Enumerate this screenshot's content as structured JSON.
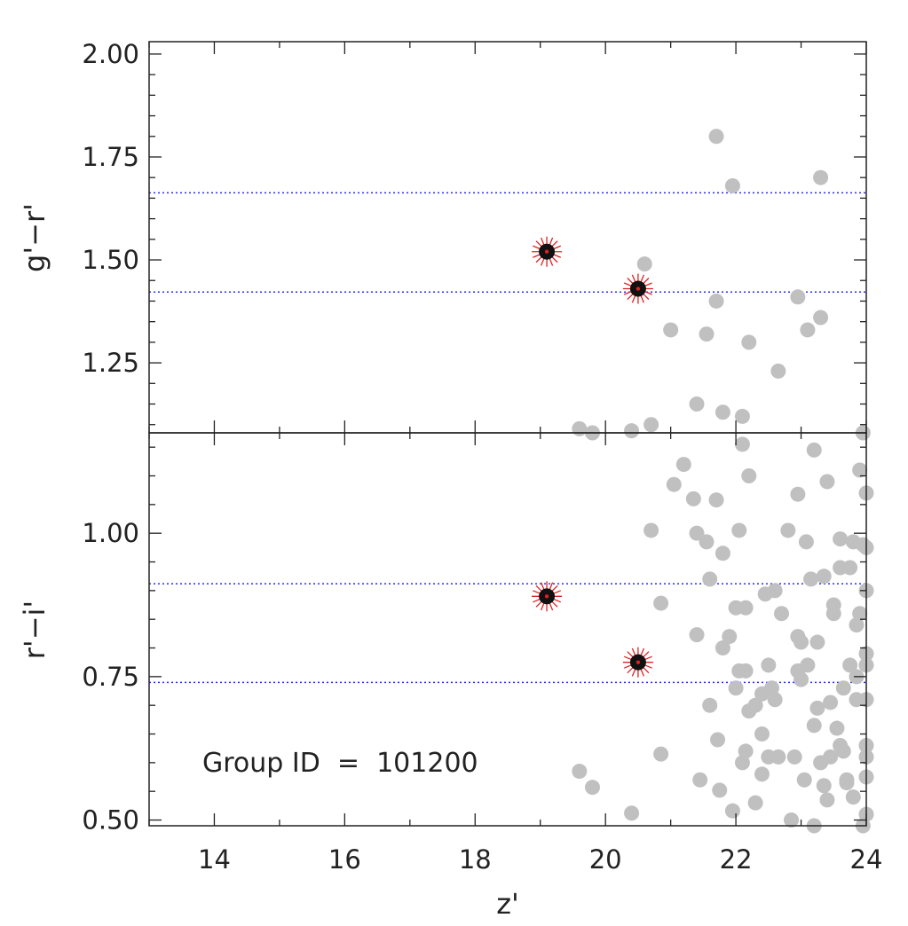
{
  "chart_data": [
    {
      "type": "scatter",
      "panel": "top",
      "title": "",
      "xlabel": "z'",
      "ylabel": "g'−r'",
      "xlim": [
        13,
        24
      ],
      "ylim": [
        1.08,
        2.03
      ],
      "xticks": [
        14,
        16,
        18,
        20,
        22,
        24
      ],
      "yticks": [
        2.0,
        1.75,
        1.5,
        1.25
      ],
      "ytick_labels": [
        "2.00",
        "1.75",
        "1.50",
        "1.25"
      ],
      "grid": false,
      "reference_lines": [
        1.663,
        1.422
      ],
      "colors": {
        "field": "#c0c0c0",
        "members": "#111111",
        "member_marker": "#e02020",
        "reference_line": "#2a2aff",
        "axes": "#222222"
      },
      "series": [
        {
          "points": [
            [
              19.6,
              1.09
            ],
            [
              19.8,
              1.08
            ],
            [
              20.4,
              1.085
            ],
            [
              20.6,
              1.49
            ],
            [
              20.7,
              1.1
            ],
            [
              21.0,
              1.33
            ],
            [
              21.4,
              1.15
            ],
            [
              21.55,
              1.32
            ],
            [
              21.7,
              1.4
            ],
            [
              21.7,
              1.8
            ],
            [
              21.8,
              1.13
            ],
            [
              21.95,
              1.68
            ],
            [
              22.1,
              1.12
            ],
            [
              22.2,
              1.3
            ],
            [
              22.65,
              1.23
            ],
            [
              22.95,
              1.41
            ],
            [
              23.1,
              1.33
            ],
            [
              23.3,
              1.36
            ],
            [
              23.3,
              1.7
            ],
            [
              23.95,
              1.08
            ]
          ]
        },
        {
          "points": [
            [
              19.1,
              1.52
            ],
            [
              20.5,
              1.43
            ]
          ]
        }
      ]
    },
    {
      "type": "scatter",
      "panel": "bottom",
      "title": "",
      "xlabel": "z'",
      "ylabel": "r'−i'",
      "xlim": [
        13,
        24
      ],
      "ylim": [
        0.49,
        1.175
      ],
      "xticks": [
        14,
        16,
        18,
        20,
        22,
        24
      ],
      "xtick_labels": [
        "14",
        "16",
        "18",
        "20",
        "22",
        "24"
      ],
      "yticks": [
        1.0,
        0.75,
        0.5
      ],
      "ytick_labels": [
        "1.00",
        "0.75",
        "0.50"
      ],
      "grid": false,
      "reference_lines": [
        0.912,
        0.74
      ],
      "annotation": "Group ID  =  101200",
      "series": [
        {
          "points": [
            [
              19.6,
              0.585
            ],
            [
              19.8,
              0.557
            ],
            [
              20.4,
              0.512
            ],
            [
              20.7,
              1.005
            ],
            [
              20.85,
              0.878
            ],
            [
              20.85,
              0.615
            ],
            [
              21.05,
              1.085
            ],
            [
              21.2,
              1.12
            ],
            [
              21.35,
              1.06
            ],
            [
              21.4,
              1.0
            ],
            [
              21.4,
              0.823
            ],
            [
              21.45,
              0.57
            ],
            [
              21.55,
              0.985
            ],
            [
              21.6,
              0.92
            ],
            [
              21.6,
              0.7
            ],
            [
              21.7,
              1.058
            ],
            [
              21.72,
              0.64
            ],
            [
              21.75,
              0.552
            ],
            [
              21.8,
              0.965
            ],
            [
              21.8,
              0.8
            ],
            [
              21.9,
              0.82
            ],
            [
              21.95,
              0.516
            ],
            [
              22.0,
              0.87
            ],
            [
              22.0,
              0.73
            ],
            [
              22.05,
              0.76
            ],
            [
              22.05,
              1.005
            ],
            [
              22.1,
              1.155
            ],
            [
              22.1,
              0.6
            ],
            [
              22.15,
              0.87
            ],
            [
              22.15,
              0.76
            ],
            [
              22.15,
              0.62
            ],
            [
              22.2,
              1.1
            ],
            [
              22.2,
              0.69
            ],
            [
              22.3,
              0.7
            ],
            [
              22.3,
              0.53
            ],
            [
              22.4,
              0.72
            ],
            [
              22.4,
              0.65
            ],
            [
              22.4,
              0.58
            ],
            [
              22.45,
              0.894
            ],
            [
              22.5,
              0.77
            ],
            [
              22.5,
              0.61
            ],
            [
              22.55,
              0.73
            ],
            [
              22.6,
              0.9
            ],
            [
              22.6,
              0.71
            ],
            [
              22.65,
              0.61
            ],
            [
              22.7,
              0.86
            ],
            [
              22.8,
              1.005
            ],
            [
              22.85,
              0.5
            ],
            [
              22.9,
              0.61
            ],
            [
              22.95,
              1.068
            ],
            [
              22.95,
              0.82
            ],
            [
              22.95,
              0.76
            ],
            [
              23.0,
              0.81
            ],
            [
              23.0,
              0.745
            ],
            [
              23.05,
              0.57
            ],
            [
              23.08,
              0.985
            ],
            [
              23.1,
              0.77
            ],
            [
              23.15,
              0.92
            ],
            [
              23.2,
              0.665
            ],
            [
              23.2,
              0.49
            ],
            [
              23.2,
              1.145
            ],
            [
              23.25,
              0.81
            ],
            [
              23.25,
              0.695
            ],
            [
              23.3,
              0.6
            ],
            [
              23.35,
              0.925
            ],
            [
              23.35,
              0.56
            ],
            [
              23.4,
              1.09
            ],
            [
              23.4,
              0.535
            ],
            [
              23.45,
              0.705
            ],
            [
              23.45,
              0.61
            ],
            [
              23.5,
              0.86
            ],
            [
              23.5,
              0.875
            ],
            [
              23.55,
              0.66
            ],
            [
              23.6,
              0.99
            ],
            [
              23.6,
              0.63
            ],
            [
              23.6,
              0.94
            ],
            [
              23.65,
              0.73
            ],
            [
              23.65,
              0.62
            ],
            [
              23.7,
              0.57
            ],
            [
              23.7,
              0.565
            ],
            [
              23.75,
              0.94
            ],
            [
              23.75,
              0.77
            ],
            [
              23.8,
              0.985
            ],
            [
              23.8,
              0.54
            ],
            [
              23.85,
              0.75
            ],
            [
              23.85,
              0.71
            ],
            [
              23.85,
              0.84
            ],
            [
              23.9,
              0.86
            ],
            [
              23.9,
              1.11
            ],
            [
              23.95,
              0.98
            ],
            [
              23.95,
              0.49
            ],
            [
              24.0,
              0.9
            ],
            [
              24.0,
              0.79
            ],
            [
              24.0,
              0.77
            ],
            [
              24.0,
              0.71
            ],
            [
              24.0,
              0.63
            ],
            [
              24.0,
              0.61
            ],
            [
              24.0,
              0.575
            ],
            [
              24.0,
              1.07
            ],
            [
              24.0,
              0.51
            ],
            [
              24.0,
              0.975
            ]
          ]
        },
        {
          "points": [
            [
              19.1,
              0.89
            ],
            [
              20.5,
              0.775
            ]
          ]
        }
      ]
    }
  ]
}
